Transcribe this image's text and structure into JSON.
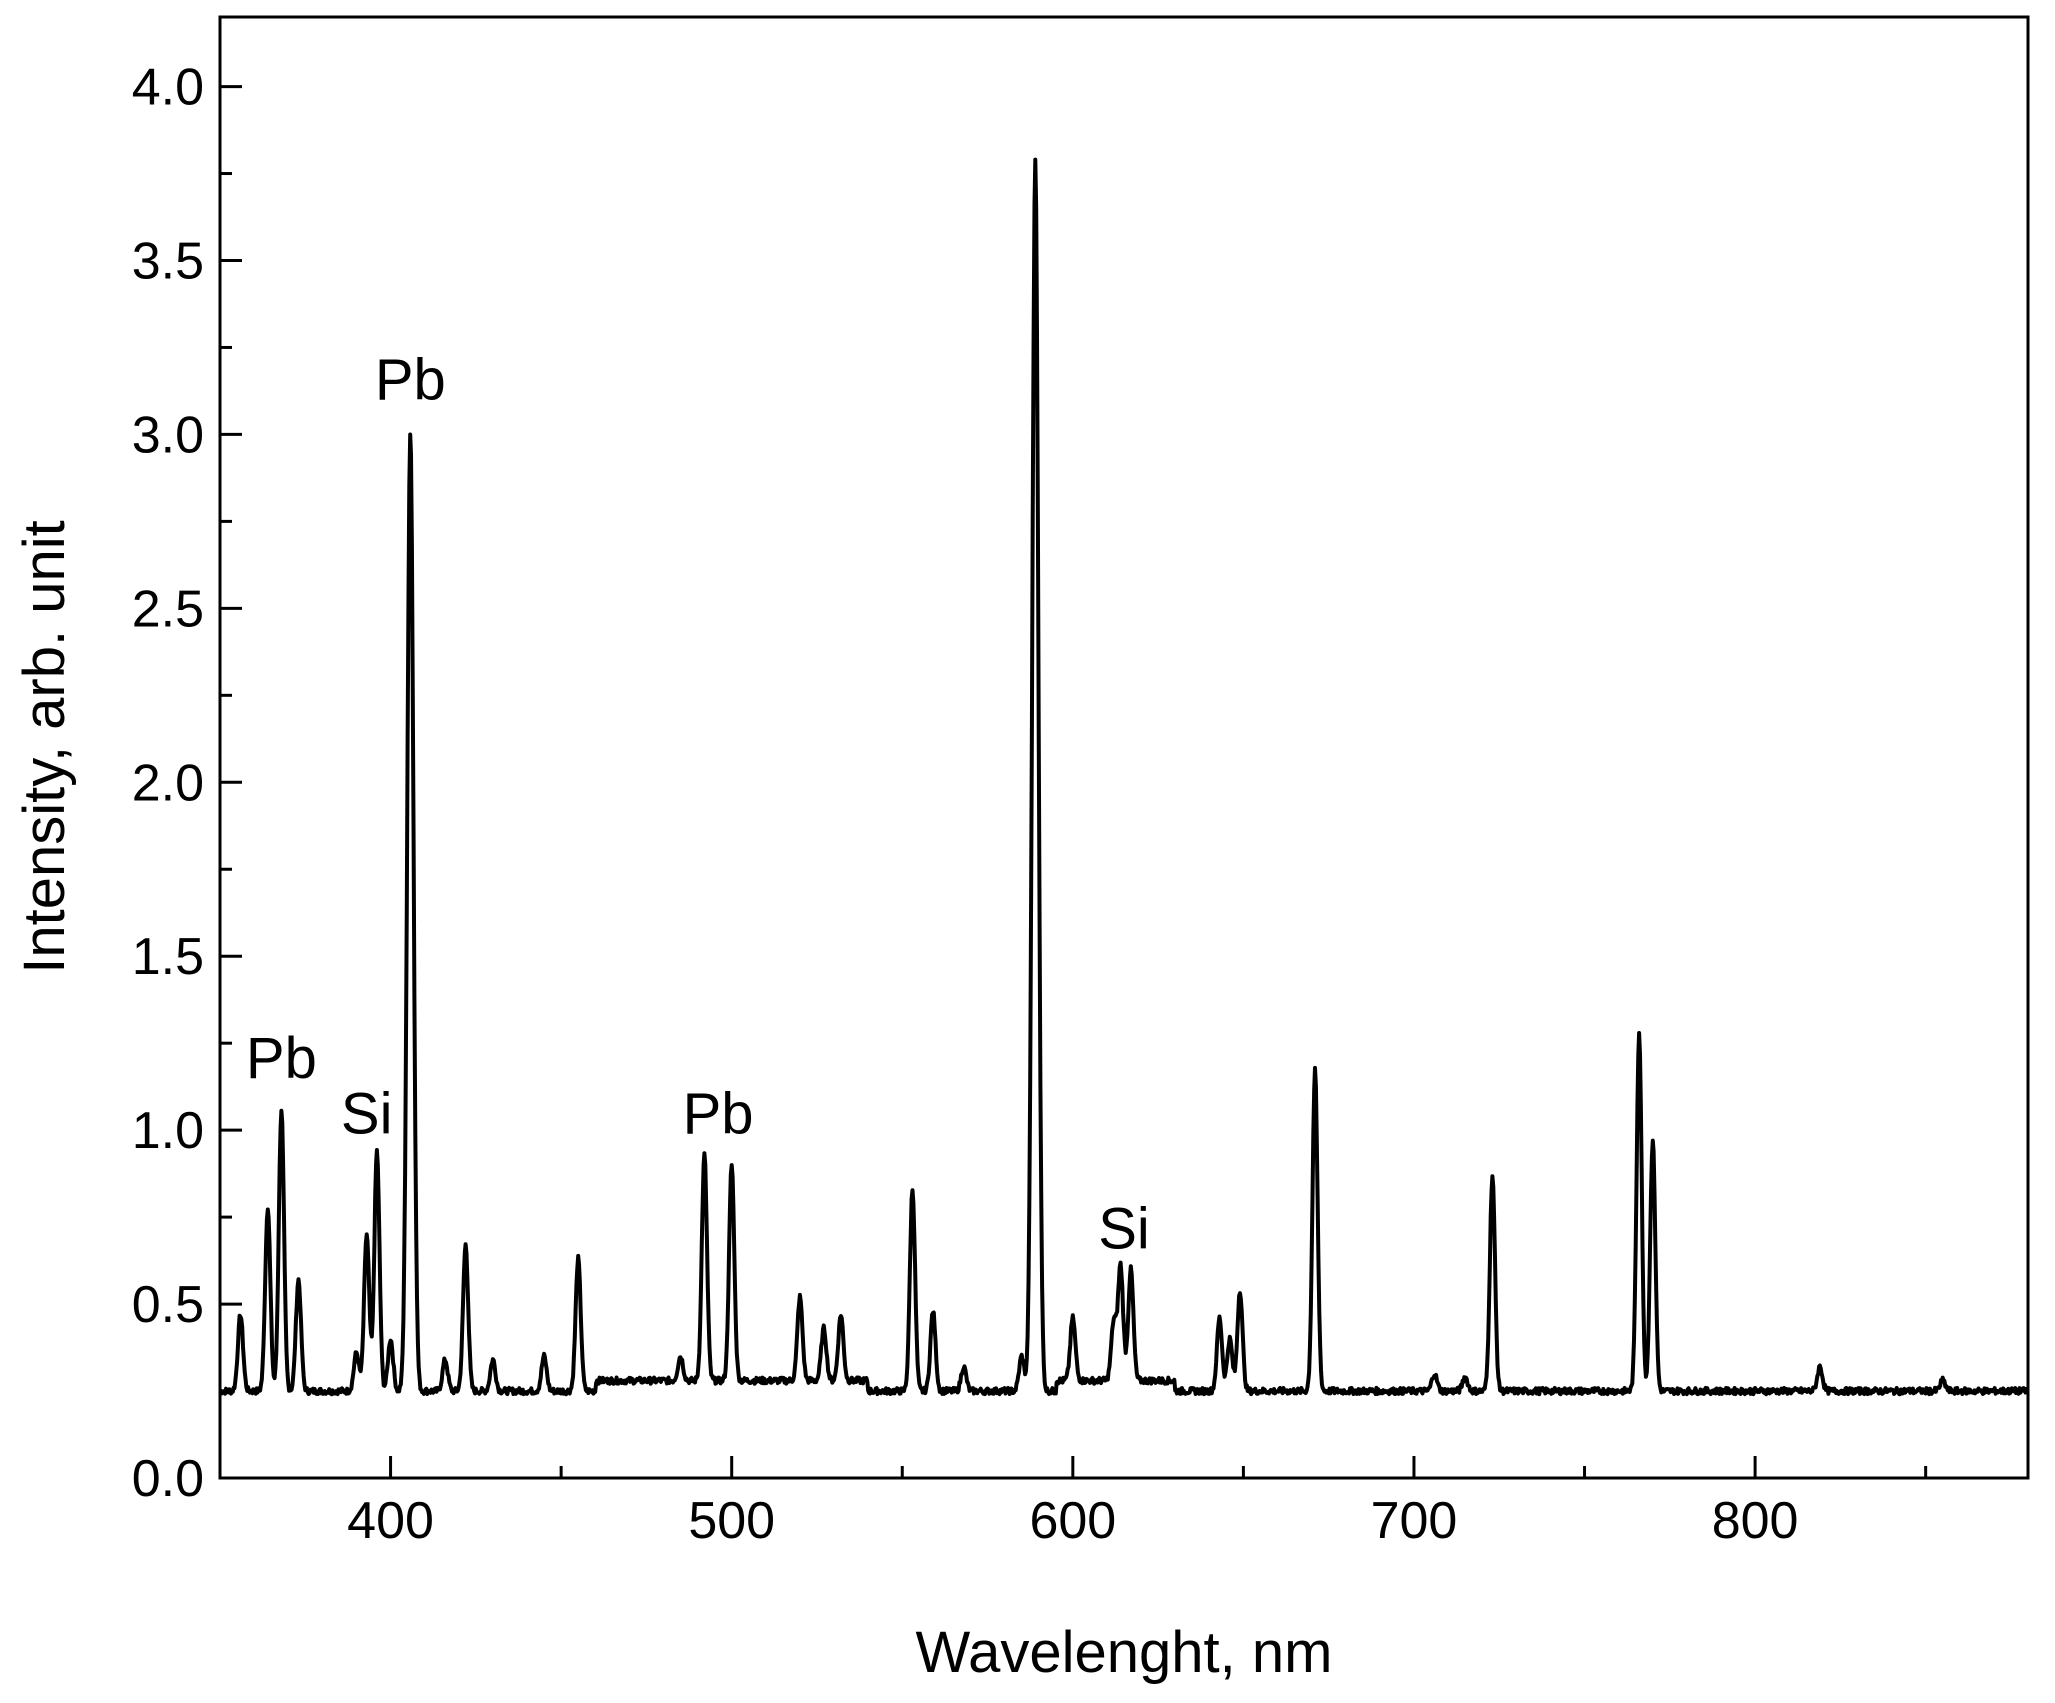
{
  "chart_data": {
    "type": "line",
    "title": "",
    "xlabel": "Wavelenght, nm",
    "ylabel": "Intensity, arb. unit",
    "xlim": [
      350,
      880
    ],
    "ylim": [
      0.0,
      4.2
    ],
    "xticks": [
      400,
      500,
      600,
      700,
      800
    ],
    "xtick_labels": [
      "400",
      "500",
      "600",
      "700",
      "800"
    ],
    "yticks": [
      0.0,
      0.5,
      1.0,
      1.5,
      2.0,
      2.5,
      3.0,
      3.5,
      4.0
    ],
    "ytick_labels": [
      "0.0",
      "0.5",
      "1.0",
      "1.5",
      "2.0",
      "2.5",
      "3.0",
      "3.5",
      "4.0"
    ],
    "grid": false,
    "legend": "none",
    "line_color": "#000000",
    "baseline": 0.25,
    "peaks": [
      {
        "x": 356,
        "y": 0.47
      },
      {
        "x": 364,
        "y": 0.78
      },
      {
        "x": 368,
        "y": 1.06
      },
      {
        "x": 373,
        "y": 0.57
      },
      {
        "x": 390,
        "y": 0.36
      },
      {
        "x": 393,
        "y": 0.7
      },
      {
        "x": 396,
        "y": 0.94
      },
      {
        "x": 400,
        "y": 0.4
      },
      {
        "x": 405.8,
        "y": 3.01
      },
      {
        "x": 416,
        "y": 0.34
      },
      {
        "x": 422,
        "y": 0.67
      },
      {
        "x": 430,
        "y": 0.34
      },
      {
        "x": 445,
        "y": 0.35
      },
      {
        "x": 455,
        "y": 0.63
      },
      {
        "x": 485,
        "y": 0.32
      },
      {
        "x": 492,
        "y": 0.9
      },
      {
        "x": 500,
        "y": 0.87
      },
      {
        "x": 520,
        "y": 0.49
      },
      {
        "x": 527,
        "y": 0.4
      },
      {
        "x": 532,
        "y": 0.44
      },
      {
        "x": 553,
        "y": 0.83
      },
      {
        "x": 559,
        "y": 0.48
      },
      {
        "x": 568,
        "y": 0.32
      },
      {
        "x": 585,
        "y": 0.35
      },
      {
        "x": 589,
        "y": 3.79
      },
      {
        "x": 600,
        "y": 0.43
      },
      {
        "x": 612,
        "y": 0.42
      },
      {
        "x": 614,
        "y": 0.58
      },
      {
        "x": 617,
        "y": 0.57
      },
      {
        "x": 643,
        "y": 0.46
      },
      {
        "x": 646,
        "y": 0.4
      },
      {
        "x": 649,
        "y": 0.54
      },
      {
        "x": 671,
        "y": 1.17
      },
      {
        "x": 706,
        "y": 0.3
      },
      {
        "x": 715,
        "y": 0.29
      },
      {
        "x": 723,
        "y": 0.87
      },
      {
        "x": 766,
        "y": 1.28
      },
      {
        "x": 770,
        "y": 0.97
      },
      {
        "x": 819,
        "y": 0.32
      },
      {
        "x": 855,
        "y": 0.28
      }
    ],
    "annotations": [
      {
        "text": "Pb",
        "x": 368,
        "y": 1.15
      },
      {
        "text": "Si",
        "x": 393,
        "y": 0.99
      },
      {
        "text": "Pb",
        "x": 405.8,
        "y": 3.1
      },
      {
        "text": "Pb",
        "x": 496,
        "y": 0.99
      },
      {
        "text": "Si",
        "x": 615,
        "y": 0.66
      }
    ]
  }
}
